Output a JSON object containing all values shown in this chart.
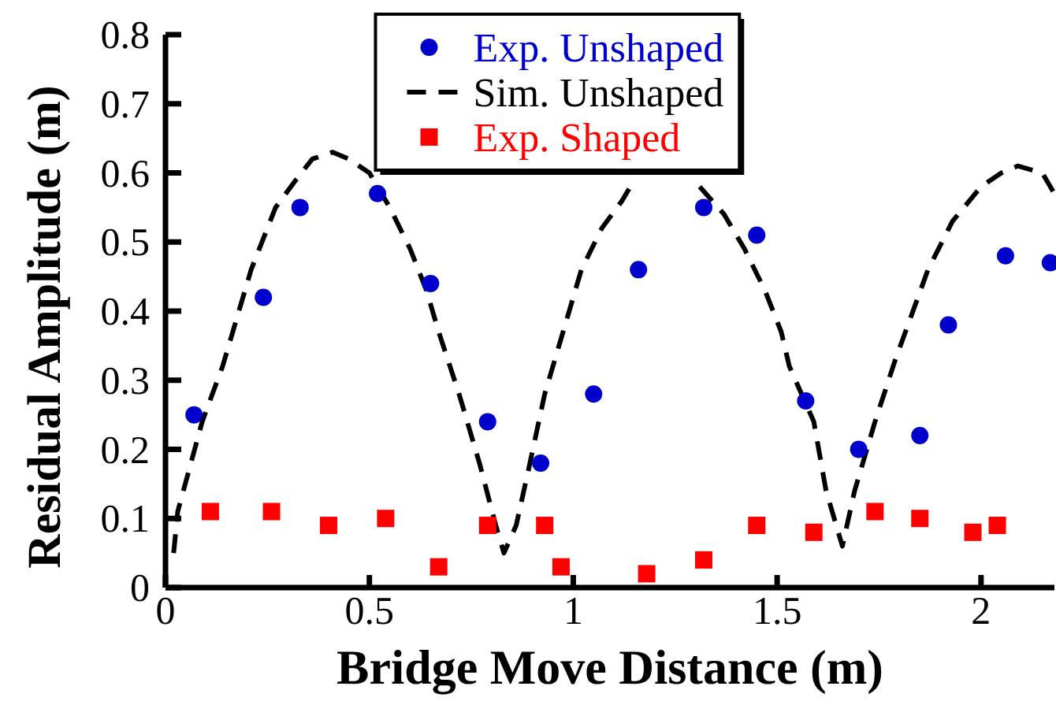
{
  "chart_data": {
    "type": "scatter",
    "xlabel": "Bridge Move Distance (m)",
    "ylabel": "Residual Amplitude (m)",
    "xlim": [
      0,
      2.18
    ],
    "xticks": [
      0,
      0.5,
      1,
      1.5,
      2
    ],
    "ylim": [
      0,
      0.8
    ],
    "yticks": [
      0,
      0.1,
      0.2,
      0.3,
      0.4,
      0.5,
      0.6,
      0.7,
      0.8
    ],
    "legend": "top",
    "series": [
      {
        "name": "Exp. Unshaped",
        "marker": "circle",
        "color": "#0000cc",
        "x": [
          0.07,
          0.24,
          0.33,
          0.52,
          0.65,
          0.79,
          0.92,
          1.05,
          1.16,
          1.32,
          1.45,
          1.57,
          1.7,
          1.85,
          1.92,
          2.06,
          2.17
        ],
        "values": [
          0.25,
          0.42,
          0.55,
          0.57,
          0.44,
          0.24,
          0.18,
          0.28,
          0.46,
          0.55,
          0.51,
          0.27,
          0.2,
          0.22,
          0.38,
          0.48,
          0.47
        ]
      },
      {
        "name": "Sim. Unshaped",
        "type": "line",
        "marker": "none",
        "line_style": "dashed",
        "color": "#000000",
        "x": [
          0.02,
          0.03,
          0.09,
          0.14,
          0.21,
          0.27,
          0.32,
          0.36,
          0.41,
          0.45,
          0.5,
          0.55,
          0.6,
          0.64,
          0.67,
          0.72,
          0.77,
          0.81,
          0.83,
          0.86,
          0.89,
          0.93,
          0.97,
          1.02,
          1.07,
          1.12,
          1.15,
          1.24,
          1.31,
          1.37,
          1.42,
          1.47,
          1.51,
          1.53,
          1.59,
          1.62,
          1.66,
          1.69,
          1.74,
          1.79,
          1.87,
          1.93,
          2.0,
          2.05,
          2.09,
          2.15,
          2.18
        ],
        "values": [
          0.05,
          0.11,
          0.24,
          0.32,
          0.46,
          0.55,
          0.59,
          0.62,
          0.63,
          0.62,
          0.6,
          0.55,
          0.49,
          0.43,
          0.37,
          0.28,
          0.18,
          0.09,
          0.05,
          0.09,
          0.17,
          0.28,
          0.36,
          0.46,
          0.52,
          0.56,
          0.59,
          null,
          0.58,
          0.54,
          0.49,
          0.43,
          0.37,
          0.32,
          0.24,
          0.14,
          0.06,
          0.14,
          0.24,
          0.33,
          0.46,
          0.53,
          0.58,
          0.6,
          0.61,
          0.6,
          0.57
        ]
      },
      {
        "name": "Exp. Shaped",
        "marker": "square",
        "color": "#ff0000",
        "x": [
          0.11,
          0.26,
          0.4,
          0.54,
          0.67,
          0.79,
          0.93,
          0.97,
          1.18,
          1.32,
          1.45,
          1.59,
          1.74,
          1.85,
          1.98,
          2.04
        ],
        "values": [
          0.11,
          0.11,
          0.09,
          0.1,
          0.03,
          0.09,
          0.09,
          0.03,
          0.02,
          0.04,
          0.09,
          0.08,
          0.11,
          0.1,
          0.08,
          0.09
        ]
      }
    ]
  }
}
